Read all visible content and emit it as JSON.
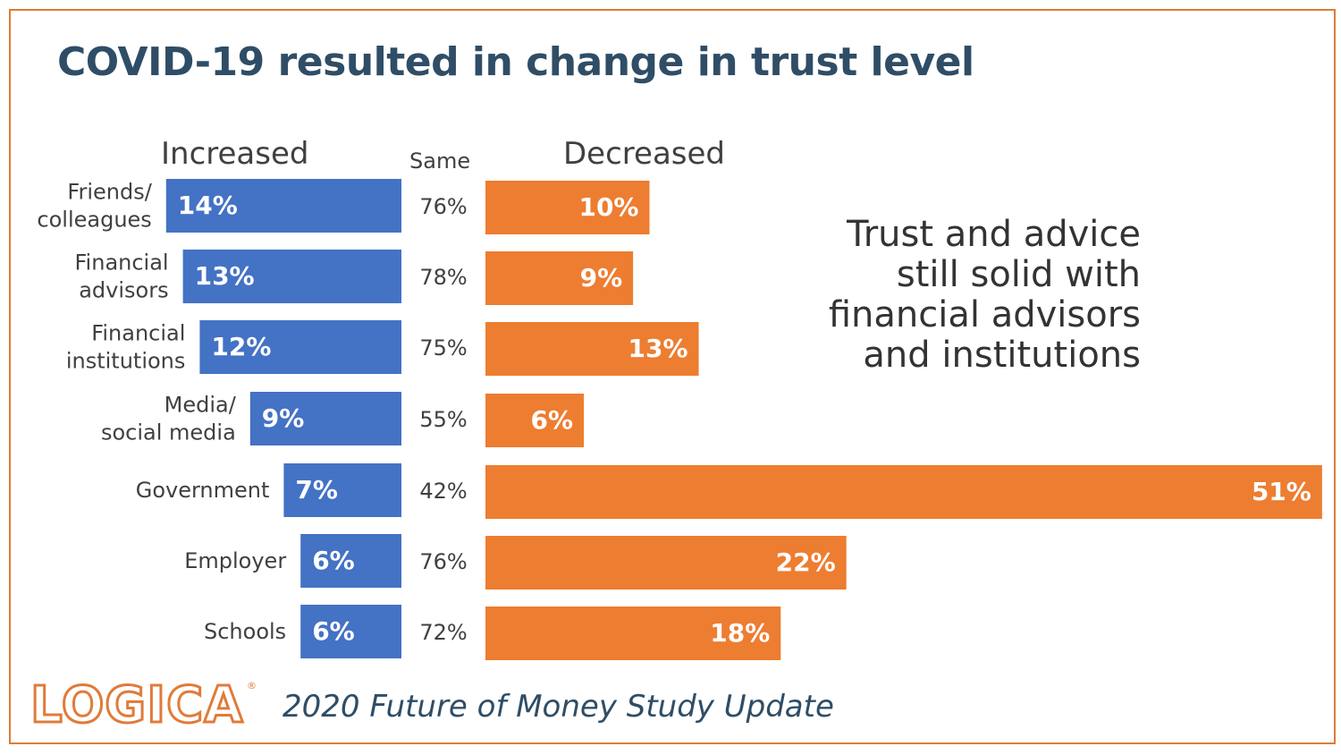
{
  "title": "COVID-19 resulted in change in trust level",
  "headers": {
    "increased": "Increased",
    "same": "Same",
    "decreased": "Decreased"
  },
  "annotation": [
    "Trust and advice",
    "still solid with",
    "financial advisors",
    "and institutions"
  ],
  "footer": {
    "logo_text": "LOGICA",
    "logo_mark": "®",
    "study": "2020 Future of Money Study Update"
  },
  "colors": {
    "increased": "#4472c4",
    "decreased": "#ed7d31",
    "frame": "#e07b39",
    "title": "#2f4d66"
  },
  "chart_data": {
    "type": "bar",
    "categories": [
      [
        "Friends/",
        "colleagues"
      ],
      [
        "Financial",
        "advisors"
      ],
      [
        "Financial",
        "institutions"
      ],
      [
        "Media/",
        "social media"
      ],
      [
        "Government"
      ],
      [
        "Employer"
      ],
      [
        "Schools"
      ]
    ],
    "series": [
      {
        "name": "Increased",
        "values": [
          14,
          13,
          12,
          9,
          7,
          6,
          6
        ],
        "labels": [
          "14%",
          "13%",
          "12%",
          "9%",
          "7%",
          "6%",
          "6%"
        ]
      },
      {
        "name": "Same",
        "values": [
          76,
          78,
          75,
          55,
          42,
          76,
          72
        ],
        "labels": [
          "76%",
          "78%",
          "75%",
          "55%",
          "42%",
          "76%",
          "72%"
        ]
      },
      {
        "name": "Decreased",
        "values": [
          10,
          9,
          13,
          6,
          51,
          22,
          18
        ],
        "labels": [
          "10%",
          "9%",
          "13%",
          "6%",
          "51%",
          "22%",
          "18%"
        ]
      }
    ]
  }
}
